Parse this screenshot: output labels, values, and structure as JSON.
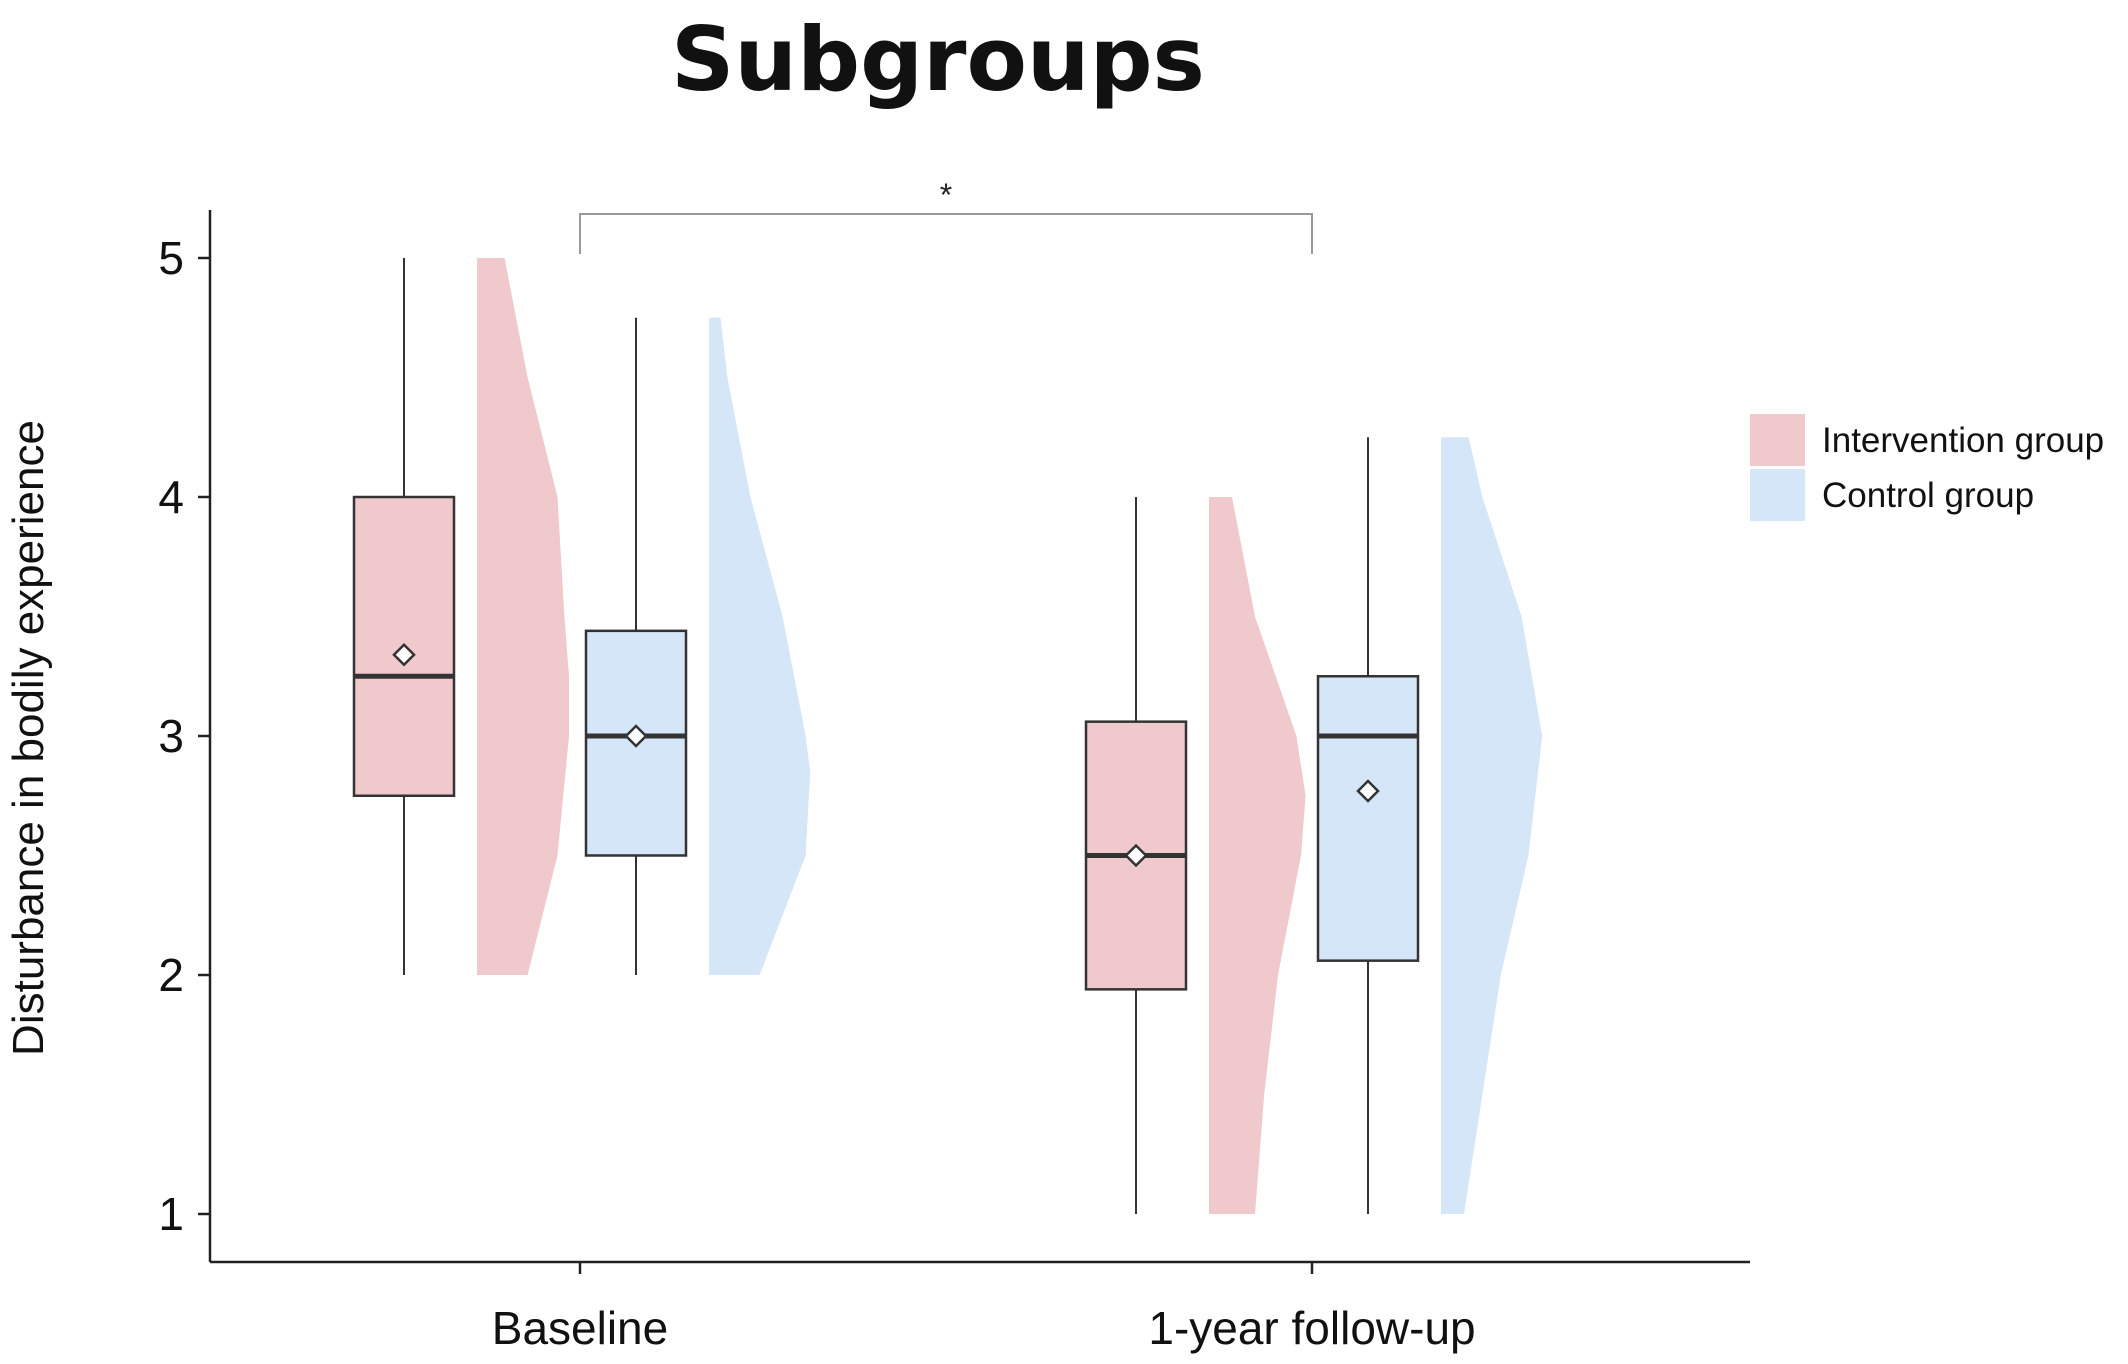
{
  "chart_data": {
    "type": "box",
    "title": "Subgroups",
    "ylabel": "Disturbance in bodily experience",
    "xlabel": "",
    "ylim": [
      0.8,
      5.2
    ],
    "yticks": [
      1,
      2,
      3,
      4,
      5
    ],
    "categories": [
      "Baseline",
      "1-year follow-up"
    ],
    "legend_position": "right",
    "grid": false,
    "series": [
      {
        "name": "Intervention group",
        "color": "#efc9cc",
        "boxes": [
          {
            "category": "Baseline",
            "min": 2.0,
            "q1": 2.75,
            "median": 3.25,
            "q3": 4.0,
            "max": 5.0,
            "mean": 3.34,
            "density": [
              [
                2.0,
                0.22
              ],
              [
                2.5,
                0.35
              ],
              [
                3.0,
                0.4
              ],
              [
                3.25,
                0.4
              ],
              [
                3.5,
                0.38
              ],
              [
                4.0,
                0.35
              ],
              [
                4.5,
                0.22
              ],
              [
                5.0,
                0.12
              ]
            ]
          },
          {
            "category": "1-year follow-up",
            "min": 1.0,
            "q1": 1.94,
            "median": 2.5,
            "q3": 3.06,
            "max": 4.0,
            "mean": 2.5,
            "density": [
              [
                1.0,
                0.2
              ],
              [
                1.5,
                0.24
              ],
              [
                2.0,
                0.3
              ],
              [
                2.5,
                0.4
              ],
              [
                2.75,
                0.42
              ],
              [
                3.0,
                0.38
              ],
              [
                3.5,
                0.2
              ],
              [
                4.0,
                0.1
              ]
            ]
          }
        ]
      },
      {
        "name": "Control group",
        "color": "#d4e6f7",
        "boxes": [
          {
            "category": "Baseline",
            "min": 2.0,
            "q1": 2.5,
            "median": 3.0,
            "q3": 3.44,
            "max": 4.75,
            "mean": 3.0,
            "density": [
              [
                2.0,
                0.22
              ],
              [
                2.5,
                0.42
              ],
              [
                2.85,
                0.44
              ],
              [
                3.0,
                0.42
              ],
              [
                3.5,
                0.32
              ],
              [
                4.0,
                0.18
              ],
              [
                4.5,
                0.08
              ],
              [
                4.75,
                0.05
              ]
            ]
          },
          {
            "category": "1-year follow-up",
            "min": 1.0,
            "q1": 2.06,
            "median": 3.0,
            "q3": 3.25,
            "max": 4.25,
            "mean": 2.77,
            "density": [
              [
                1.0,
                0.1
              ],
              [
                1.5,
                0.18
              ],
              [
                2.0,
                0.26
              ],
              [
                2.5,
                0.38
              ],
              [
                3.0,
                0.44
              ],
              [
                3.5,
                0.35
              ],
              [
                4.0,
                0.18
              ],
              [
                4.25,
                0.12
              ]
            ]
          }
        ]
      }
    ],
    "annotations": [
      {
        "type": "significance-bracket",
        "from": "Baseline",
        "to": "1-year follow-up",
        "label": "*"
      }
    ]
  }
}
